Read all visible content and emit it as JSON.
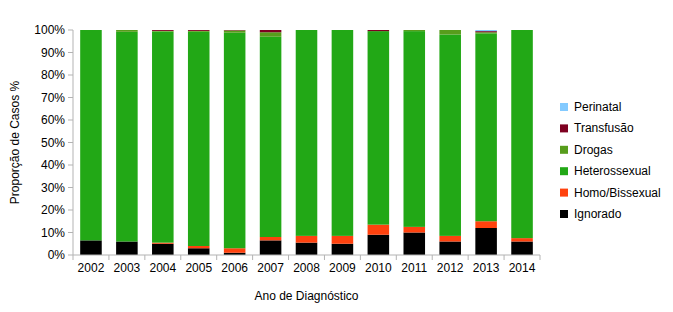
{
  "chart_data": {
    "type": "bar",
    "stacked": true,
    "grid": false,
    "legend": "right",
    "x_label": "Ano de Diagnóstico",
    "y_label": "Proporção de Casos %",
    "categories": [
      "2002",
      "2003",
      "2004",
      "2005",
      "2006",
      "2007",
      "2008",
      "2009",
      "2010",
      "2011",
      "2012",
      "2013",
      "2014"
    ],
    "ylim": [
      0,
      100
    ],
    "yticks": [
      {
        "value": 0,
        "label": "0%"
      },
      {
        "value": 10,
        "label": "10%"
      },
      {
        "value": 20,
        "label": "20%"
      },
      {
        "value": 30,
        "label": "30%"
      },
      {
        "value": 40,
        "label": "40%"
      },
      {
        "value": 50,
        "label": "50%"
      },
      {
        "value": 60,
        "label": "60%"
      },
      {
        "value": 70,
        "label": "70%"
      },
      {
        "value": 80,
        "label": "80%"
      },
      {
        "value": 90,
        "label": "90%"
      },
      {
        "value": 100,
        "label": "100%"
      }
    ],
    "series": [
      {
        "name": "Ignorado",
        "color": "#000000",
        "values": [
          6.5,
          6,
          5,
          3,
          1,
          6.5,
          5.5,
          5,
          9,
          10,
          6,
          12,
          6
        ]
      },
      {
        "name": "Homo/Bissexual",
        "color": "#ff420e",
        "values": [
          0,
          0,
          0.5,
          1,
          2,
          1.5,
          3,
          3.5,
          4.5,
          2.5,
          2.5,
          3,
          1.5
        ]
      },
      {
        "name": "Heterossexual",
        "color": "#22a816",
        "values": [
          93.5,
          93.2,
          93.8,
          95.2,
          95.8,
          89,
          91.5,
          91.5,
          86,
          87,
          89.5,
          83.5,
          92.5
        ]
      },
      {
        "name": "Drogas",
        "color": "#579d1c",
        "values": [
          0,
          0.8,
          0.3,
          0.4,
          1,
          2,
          0,
          0,
          0,
          0.5,
          2,
          0.5,
          0
        ]
      },
      {
        "name": "Transfusão",
        "color": "#7e0021",
        "values": [
          0,
          0,
          0.4,
          0.4,
          0.2,
          1,
          0,
          0,
          0.5,
          0,
          0,
          0.5,
          0
        ]
      },
      {
        "name": "Perinatal",
        "color": "#83caff",
        "values": [
          0,
          0,
          0,
          0,
          0,
          0,
          0,
          0,
          0,
          0,
          0,
          0.5,
          0
        ]
      }
    ]
  }
}
